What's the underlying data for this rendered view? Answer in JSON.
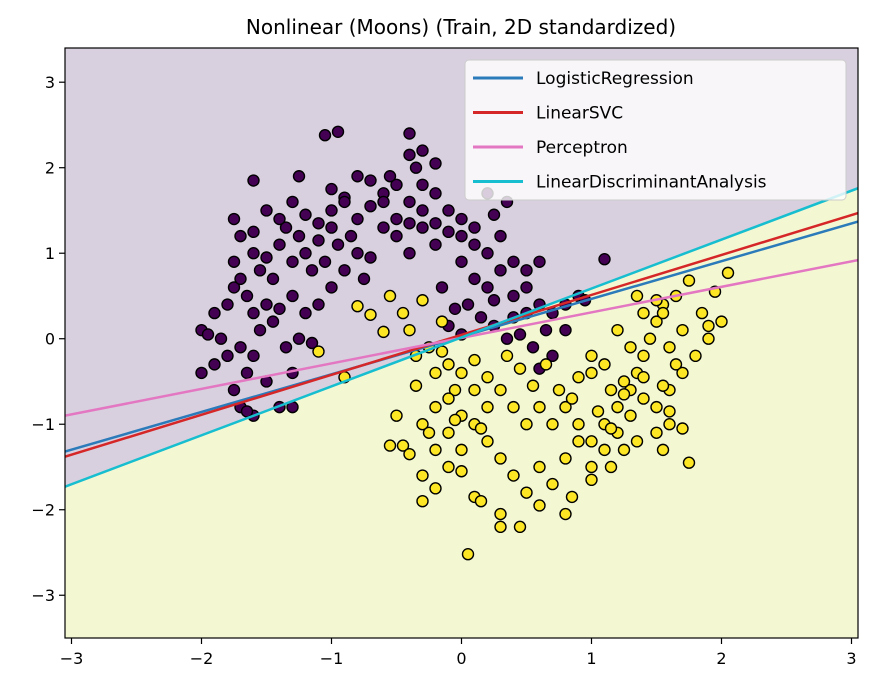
{
  "chart_data": {
    "type": "scatter",
    "title": "Nonlinear (Moons) (Train, 2D standardized)",
    "xlabel": "",
    "ylabel": "",
    "xlim": [
      -3.05,
      3.05
    ],
    "ylim": [
      -3.5,
      3.4
    ],
    "x_ticks": [
      -3,
      -2,
      -1,
      0,
      1,
      2,
      3
    ],
    "y_ticks": [
      -3,
      -2,
      -1,
      0,
      1,
      2,
      3
    ],
    "x_tick_labels": [
      "−3",
      "−2",
      "−1",
      "0",
      "1",
      "2",
      "3"
    ],
    "y_tick_labels": [
      "−3",
      "−2",
      "−1",
      "0",
      "1",
      "2",
      "3"
    ],
    "grid": false,
    "legend_position": "top-right",
    "regions": {
      "upper_color": "#d9d0df",
      "lower_color": "#f4f8d2",
      "boundary_line": "LinearDiscriminantAnalysis"
    },
    "decision_lines": [
      {
        "name": "LogisticRegression",
        "color": "#2b7bba",
        "x": [
          -3.05,
          3.05
        ],
        "y": [
          -1.32,
          1.37
        ]
      },
      {
        "name": "LinearSVC",
        "color": "#d62728",
        "x": [
          -3.05,
          3.05
        ],
        "y": [
          -1.38,
          1.47
        ]
      },
      {
        "name": "Perceptron",
        "color": "#e377c2",
        "x": [
          -3.05,
          3.05
        ],
        "y": [
          -0.9,
          0.92
        ]
      },
      {
        "name": "LinearDiscriminantAnalysis",
        "color": "#17becf",
        "x": [
          -3.05,
          3.05
        ],
        "y": [
          -1.73,
          1.76
        ]
      }
    ],
    "series": [
      {
        "color": "#440154",
        "points": [
          [
            -2.0,
            -0.4
          ],
          [
            -1.9,
            -0.3
          ],
          [
            -2.0,
            0.1
          ],
          [
            -1.95,
            0.05
          ],
          [
            -1.85,
            0.0
          ],
          [
            -1.8,
            -0.2
          ],
          [
            -1.75,
            -0.6
          ],
          [
            -1.7,
            -0.8
          ],
          [
            -1.6,
            -0.9
          ],
          [
            -1.65,
            -0.4
          ],
          [
            -1.5,
            -0.5
          ],
          [
            -1.4,
            -0.8
          ],
          [
            -1.3,
            -0.4
          ],
          [
            -1.7,
            -0.1
          ],
          [
            -1.6,
            -0.2
          ],
          [
            -1.55,
            0.1
          ],
          [
            -1.45,
            0.2
          ],
          [
            -1.35,
            -0.1
          ],
          [
            -1.25,
            0.0
          ],
          [
            -1.15,
            -0.05
          ],
          [
            -1.9,
            0.3
          ],
          [
            -1.8,
            0.4
          ],
          [
            -1.75,
            0.6
          ],
          [
            -1.7,
            0.7
          ],
          [
            -1.65,
            0.5
          ],
          [
            -1.6,
            0.3
          ],
          [
            -1.5,
            0.4
          ],
          [
            -1.4,
            0.35
          ],
          [
            -1.3,
            0.5
          ],
          [
            -1.2,
            0.3
          ],
          [
            -1.1,
            0.4
          ],
          [
            -1.0,
            0.6
          ],
          [
            -1.75,
            0.9
          ],
          [
            -1.7,
            1.2
          ],
          [
            -1.75,
            1.4
          ],
          [
            -1.6,
            1.0
          ],
          [
            -1.55,
            0.8
          ],
          [
            -1.5,
            0.95
          ],
          [
            -1.45,
            0.7
          ],
          [
            -1.4,
            1.1
          ],
          [
            -1.35,
            1.3
          ],
          [
            -1.3,
            0.9
          ],
          [
            -1.25,
            1.2
          ],
          [
            -1.2,
            1.0
          ],
          [
            -1.15,
            0.8
          ],
          [
            -1.1,
            1.15
          ],
          [
            -1.05,
            0.9
          ],
          [
            -1.0,
            1.3
          ],
          [
            -0.95,
            1.1
          ],
          [
            -0.9,
            0.8
          ],
          [
            -0.85,
            1.2
          ],
          [
            -0.8,
            1.0
          ],
          [
            -0.75,
            0.7
          ],
          [
            -0.7,
            0.95
          ],
          [
            -1.6,
            1.25
          ],
          [
            -1.5,
            1.5
          ],
          [
            -1.4,
            1.4
          ],
          [
            -1.3,
            1.6
          ],
          [
            -1.2,
            1.45
          ],
          [
            -1.1,
            1.35
          ],
          [
            -1.0,
            1.5
          ],
          [
            -0.9,
            1.65
          ],
          [
            -0.8,
            1.4
          ],
          [
            -0.7,
            1.55
          ],
          [
            -0.6,
            1.3
          ],
          [
            -0.5,
            1.2
          ],
          [
            -0.4,
            1.0
          ],
          [
            -0.3,
            1.3
          ],
          [
            -0.2,
            1.1
          ],
          [
            -0.1,
            1.25
          ],
          [
            -1.25,
            1.9
          ],
          [
            -1.0,
            1.75
          ],
          [
            -0.9,
            1.6
          ],
          [
            -0.8,
            1.9
          ],
          [
            -0.7,
            1.85
          ],
          [
            -0.6,
            1.7
          ],
          [
            -0.5,
            1.8
          ],
          [
            -0.4,
            1.6
          ],
          [
            -0.35,
            2.0
          ],
          [
            -0.3,
            1.8
          ],
          [
            -0.2,
            1.7
          ],
          [
            -0.1,
            1.5
          ],
          [
            0.0,
            1.4
          ],
          [
            0.1,
            1.3
          ],
          [
            -0.6,
            1.6
          ],
          [
            -0.5,
            1.4
          ],
          [
            -0.4,
            1.35
          ],
          [
            -0.3,
            1.5
          ],
          [
            -0.2,
            1.35
          ],
          [
            0.0,
            1.2
          ],
          [
            0.1,
            1.1
          ],
          [
            0.2,
            1.0
          ],
          [
            0.3,
            1.2
          ],
          [
            0.4,
            0.9
          ],
          [
            0.5,
            0.8
          ],
          [
            0.6,
            0.9
          ],
          [
            0.0,
            0.9
          ],
          [
            0.1,
            0.7
          ],
          [
            0.2,
            0.6
          ],
          [
            0.3,
            0.8
          ],
          [
            0.4,
            0.5
          ],
          [
            0.5,
            0.6
          ],
          [
            0.6,
            0.4
          ],
          [
            0.7,
            0.3
          ],
          [
            0.8,
            0.4
          ],
          [
            0.9,
            0.5
          ],
          [
            0.95,
            0.45
          ],
          [
            1.1,
            0.93
          ],
          [
            -1.6,
            1.85
          ],
          [
            -1.05,
            2.38
          ],
          [
            -0.95,
            2.42
          ],
          [
            -0.4,
            2.4
          ],
          [
            -0.3,
            2.2
          ],
          [
            -0.2,
            2.05
          ],
          [
            -0.4,
            2.15
          ],
          [
            -0.55,
            1.9
          ],
          [
            0.2,
            1.7
          ],
          [
            0.35,
            1.6
          ],
          [
            0.25,
            1.45
          ],
          [
            -0.15,
            0.6
          ],
          [
            0.05,
            0.4
          ],
          [
            0.15,
            0.25
          ],
          [
            0.25,
            0.15
          ],
          [
            0.35,
            0.0
          ],
          [
            0.45,
            0.05
          ],
          [
            0.55,
            -0.1
          ],
          [
            0.65,
            0.1
          ],
          [
            0.7,
            -0.2
          ],
          [
            0.6,
            -0.35
          ],
          [
            0.8,
            0.1
          ],
          [
            0.5,
            0.3
          ],
          [
            0.4,
            0.25
          ],
          [
            0.25,
            0.45
          ],
          [
            -0.05,
            0.35
          ],
          [
            0.0,
            0.05
          ],
          [
            -0.1,
            0.15
          ],
          [
            -1.3,
            -0.8
          ],
          [
            -1.65,
            -0.85
          ]
        ]
      },
      {
        "color": "#fde725",
        "points": [
          [
            -0.9,
            -0.45
          ],
          [
            -1.1,
            -0.15
          ],
          [
            -0.8,
            0.38
          ],
          [
            -0.7,
            0.28
          ],
          [
            -0.6,
            0.08
          ],
          [
            -0.55,
            0.5
          ],
          [
            -0.45,
            0.3
          ],
          [
            -0.4,
            0.1
          ],
          [
            -0.35,
            -0.2
          ],
          [
            -0.3,
            0.45
          ],
          [
            -0.25,
            -0.1
          ],
          [
            -0.2,
            -0.4
          ],
          [
            -0.15,
            0.2
          ],
          [
            -0.1,
            -0.3
          ],
          [
            -0.05,
            -0.6
          ],
          [
            0.0,
            -0.9
          ],
          [
            -0.5,
            -0.9
          ],
          [
            -0.45,
            -1.25
          ],
          [
            -0.4,
            -1.35
          ],
          [
            -0.3,
            -1.0
          ],
          [
            -0.2,
            -0.8
          ],
          [
            -0.1,
            -1.1
          ],
          [
            0.0,
            -1.3
          ],
          [
            0.1,
            -1.0
          ],
          [
            0.2,
            -1.2
          ],
          [
            0.3,
            -1.4
          ],
          [
            0.4,
            -1.6
          ],
          [
            0.5,
            -1.8
          ],
          [
            0.6,
            -1.5
          ],
          [
            0.7,
            -1.7
          ],
          [
            0.8,
            -1.4
          ],
          [
            0.9,
            -1.2
          ],
          [
            1.0,
            -1.5
          ],
          [
            1.1,
            -1.3
          ],
          [
            1.2,
            -1.1
          ],
          [
            1.3,
            -0.9
          ],
          [
            1.4,
            -0.7
          ],
          [
            1.5,
            -0.8
          ],
          [
            1.6,
            -0.6
          ],
          [
            1.7,
            -0.4
          ],
          [
            1.8,
            -0.2
          ],
          [
            1.9,
            0.0
          ],
          [
            2.0,
            0.2
          ],
          [
            2.05,
            0.77
          ],
          [
            1.95,
            0.55
          ],
          [
            1.75,
            0.68
          ],
          [
            1.65,
            0.5
          ],
          [
            1.55,
            0.4
          ],
          [
            1.5,
            0.2
          ],
          [
            1.45,
            0.0
          ],
          [
            1.4,
            -0.2
          ],
          [
            1.35,
            -0.4
          ],
          [
            1.3,
            -0.6
          ],
          [
            1.2,
            -0.8
          ],
          [
            1.1,
            -1.0
          ],
          [
            1.0,
            -1.2
          ],
          [
            0.9,
            -1.0
          ],
          [
            0.8,
            -0.8
          ],
          [
            0.7,
            -1.0
          ],
          [
            0.6,
            -0.8
          ],
          [
            0.5,
            -1.0
          ],
          [
            0.4,
            -0.8
          ],
          [
            0.3,
            -0.6
          ],
          [
            0.2,
            -0.8
          ],
          [
            0.1,
            -0.6
          ],
          [
            0.0,
            -0.4
          ],
          [
            -0.1,
            -0.7
          ],
          [
            -0.2,
            -1.3
          ],
          [
            -0.3,
            -1.6
          ],
          [
            -0.2,
            -1.75
          ],
          [
            -0.1,
            -1.5
          ],
          [
            0.0,
            -1.55
          ],
          [
            0.1,
            -1.85
          ],
          [
            0.3,
            -2.05
          ],
          [
            0.3,
            -2.2
          ],
          [
            0.45,
            -2.2
          ],
          [
            0.6,
            -1.95
          ],
          [
            0.8,
            -2.05
          ],
          [
            0.85,
            -1.85
          ],
          [
            1.0,
            -1.65
          ],
          [
            1.15,
            -1.5
          ],
          [
            1.25,
            -1.3
          ],
          [
            1.35,
            -1.2
          ],
          [
            1.5,
            -1.1
          ],
          [
            1.6,
            -1.0
          ],
          [
            1.7,
            -1.05
          ],
          [
            1.75,
            -1.45
          ],
          [
            0.05,
            -2.52
          ],
          [
            0.15,
            -1.9
          ],
          [
            -0.3,
            -1.9
          ],
          [
            -0.55,
            -1.25
          ],
          [
            -0.35,
            -0.55
          ],
          [
            -0.15,
            -0.15
          ],
          [
            0.1,
            -0.25
          ],
          [
            0.2,
            -0.45
          ],
          [
            0.35,
            -0.2
          ],
          [
            1.0,
            -0.2
          ],
          [
            1.0,
            -0.4
          ],
          [
            1.15,
            -0.6
          ],
          [
            1.25,
            -0.5
          ],
          [
            1.4,
            0.3
          ],
          [
            1.35,
            0.5
          ],
          [
            1.5,
            0.45
          ],
          [
            1.55,
            0.3
          ],
          [
            1.6,
            -0.1
          ],
          [
            1.65,
            -0.3
          ],
          [
            1.7,
            0.1
          ],
          [
            1.85,
            0.3
          ],
          [
            1.9,
            0.15
          ],
          [
            1.2,
            0.1
          ],
          [
            1.3,
            -0.1
          ],
          [
            1.1,
            -0.3
          ],
          [
            0.9,
            -0.45
          ],
          [
            0.75,
            -0.6
          ],
          [
            0.55,
            -0.55
          ],
          [
            0.45,
            -0.35
          ],
          [
            0.65,
            -0.3
          ],
          [
            0.85,
            -0.7
          ],
          [
            1.05,
            -0.85
          ],
          [
            1.15,
            -1.05
          ],
          [
            1.25,
            -0.65
          ],
          [
            1.4,
            -0.45
          ],
          [
            1.55,
            -0.55
          ],
          [
            1.6,
            -0.85
          ],
          [
            1.55,
            -1.3
          ],
          [
            -0.05,
            -0.95
          ],
          [
            0.15,
            -1.05
          ],
          [
            -0.25,
            -1.1
          ]
        ]
      }
    ]
  }
}
